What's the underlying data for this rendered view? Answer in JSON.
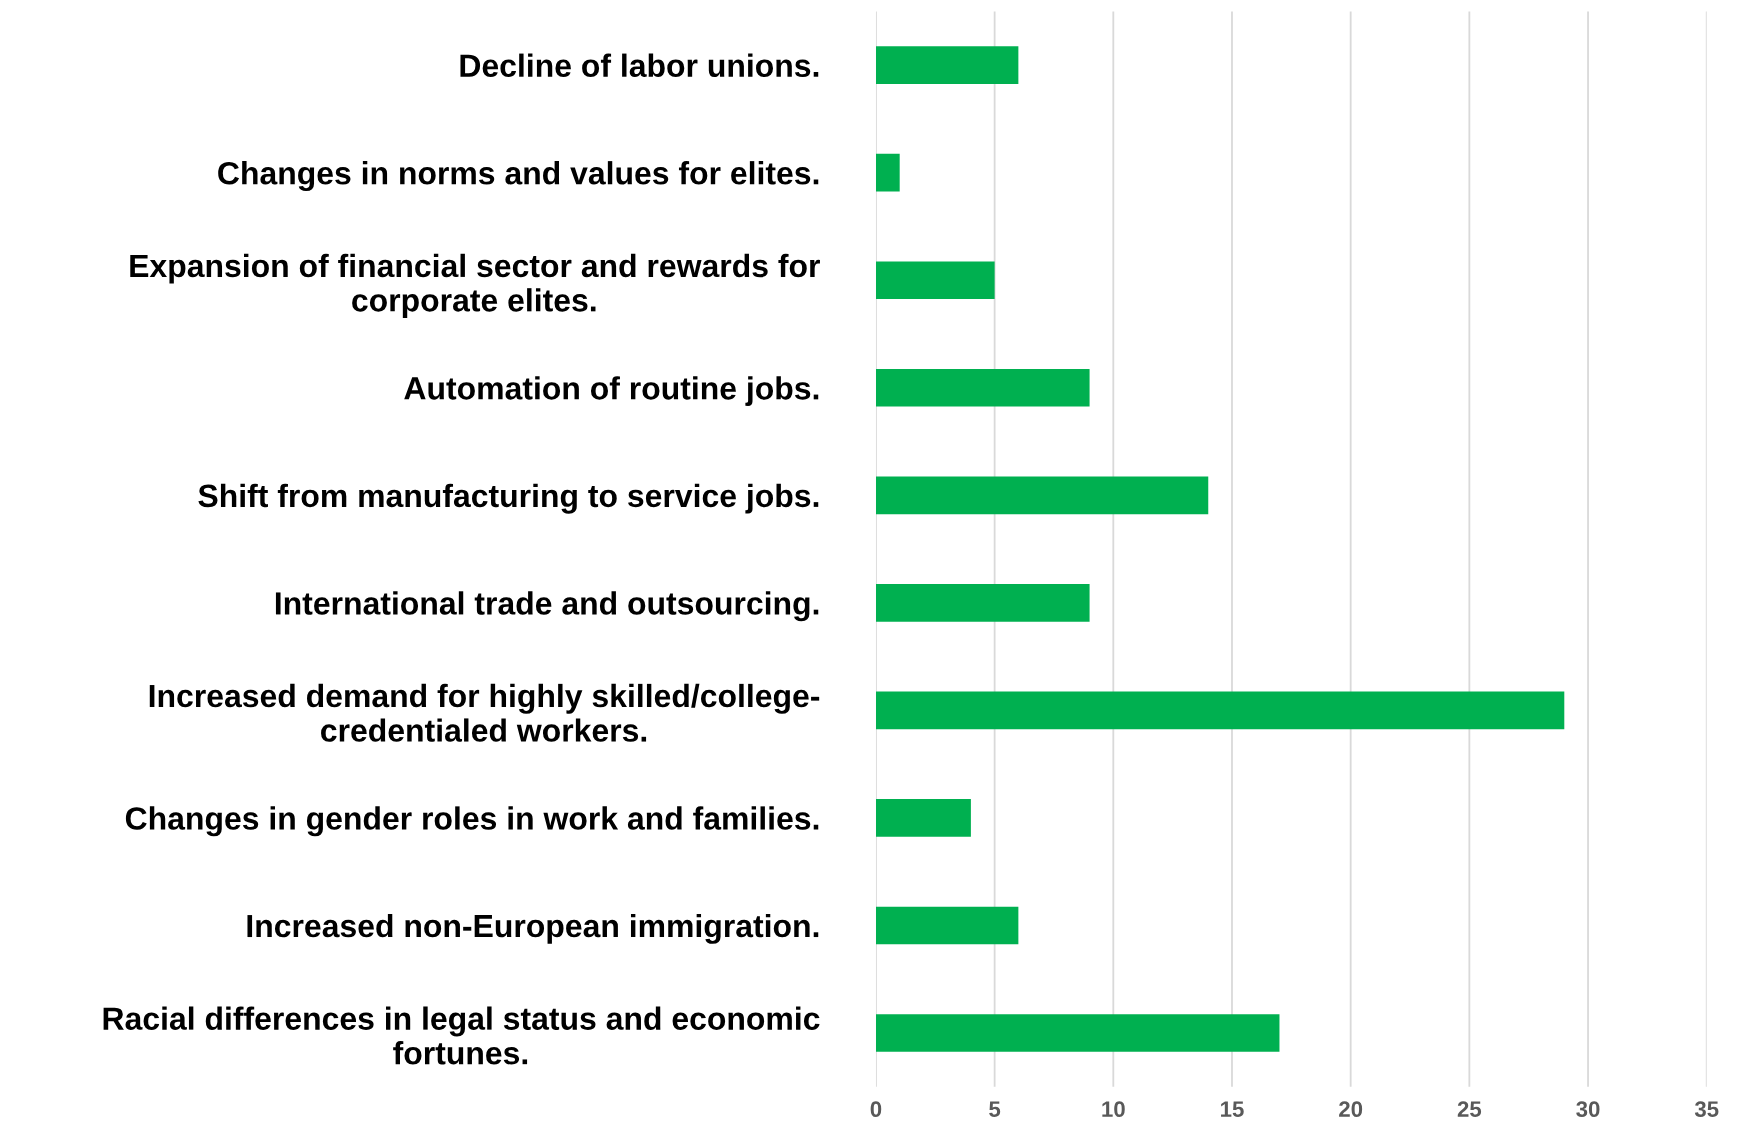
{
  "chart_data": {
    "type": "bar",
    "orientation": "horizontal",
    "categories": [
      "Decline of labor unions.",
      "Changes in norms and values for elites.",
      "Expansion of financial sector and rewards for\ncorporate elites.",
      "Automation of routine jobs.",
      "Shift from manufacturing to service jobs.",
      "International trade and outsourcing.",
      "Increased demand for highly skilled/college-\ncredentialed workers.",
      "Changes in gender roles in work and families.",
      "Increased non-European immigration.",
      "Racial differences in legal status and economic\nfortunes."
    ],
    "values": [
      6,
      1,
      5,
      9,
      14,
      9,
      29,
      4,
      6,
      17
    ],
    "color": "#00b050",
    "xlim": [
      0,
      35
    ],
    "xticks": [
      0,
      5,
      10,
      15,
      20,
      25,
      30,
      35
    ],
    "grid": "x",
    "legend": false
  }
}
